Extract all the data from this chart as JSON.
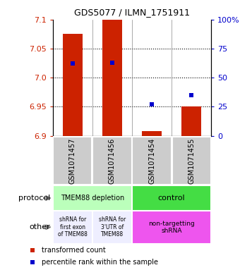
{
  "title": "GDS5077 / ILMN_1751911",
  "samples": [
    "GSM1071457",
    "GSM1071456",
    "GSM1071454",
    "GSM1071455"
  ],
  "transformed_counts": [
    7.075,
    7.1,
    6.908,
    6.95
  ],
  "percentile_ranks": [
    62,
    63,
    27,
    35
  ],
  "ylim_left": [
    6.9,
    7.1
  ],
  "ylim_right": [
    0,
    100
  ],
  "yticks_left": [
    6.9,
    6.95,
    7.0,
    7.05,
    7.1
  ],
  "yticks_right": [
    0,
    25,
    50,
    75,
    100
  ],
  "ytick_labels_right": [
    "0",
    "25",
    "50",
    "75",
    "100%"
  ],
  "bar_color": "#cc2200",
  "dot_color": "#0000cc",
  "bar_width": 0.5,
  "protocol_labels": [
    "TMEM88 depletion",
    "control"
  ],
  "protocol_colors": [
    "#bbffbb",
    "#44dd44"
  ],
  "other_labels": [
    "shRNA for\nfirst exon\nof TMEM88",
    "shRNA for\n3'UTR of\nTMEM88",
    "non-targetting\nshRNA"
  ],
  "other_colors": [
    "#eeeeff",
    "#eeeeff",
    "#ee55ee"
  ],
  "sample_box_color": "#cccccc",
  "legend_colors": [
    "#cc2200",
    "#0000cc"
  ],
  "legend_labels": [
    "transformed count",
    "percentile rank within the sample"
  ]
}
